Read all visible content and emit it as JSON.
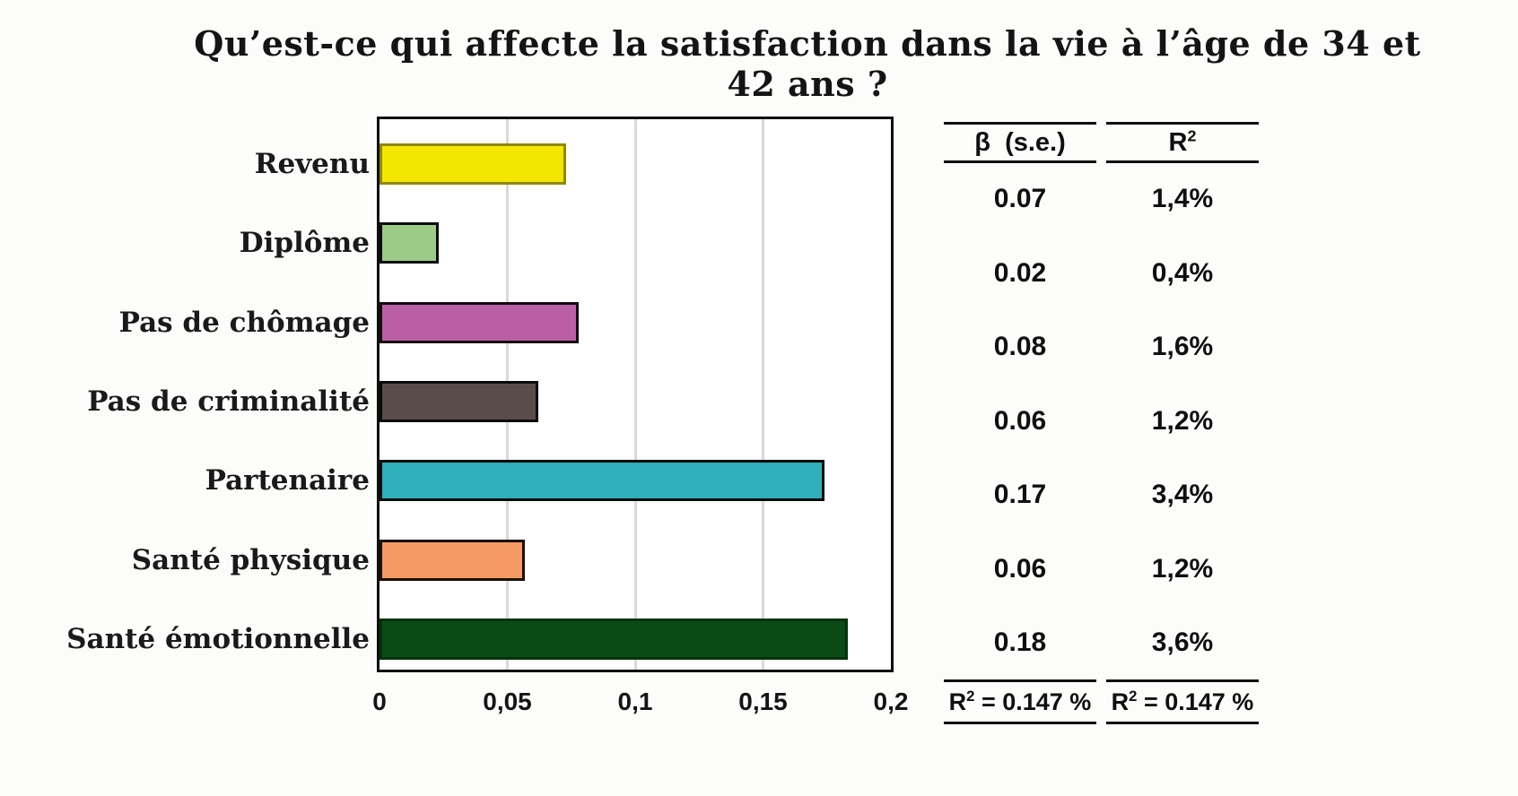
{
  "title": "Qu’est-ce qui affecte la satisfaction dans la vie à l’âge de 34 et 42 ans ?",
  "chart_data": {
    "type": "bar",
    "orientation": "horizontal",
    "title": "Qu’est-ce qui affecte la satisfaction dans la vie à l’âge de 34 et 42 ans ?",
    "categories": [
      "Revenu",
      "Diplôme",
      "Pas de chômage",
      "Pas de criminalité",
      "Partenaire",
      "Santé physique",
      "Santé émotionnelle"
    ],
    "values": [
      0.07,
      0.02,
      0.08,
      0.06,
      0.17,
      0.06,
      0.18
    ],
    "bar_lengths_precise": [
      0.073,
      0.023,
      0.078,
      0.062,
      0.174,
      0.057,
      0.183
    ],
    "bar_colors": [
      "#F3E600",
      "#9CCA87",
      "#BA5FA6",
      "#5A4D49",
      "#2FAFB9",
      "#F49A62",
      "#0A4A14"
    ],
    "bar_border_colors": [
      "#8F8800",
      "#0B0B0B",
      "#140A12",
      "#0B0B0B",
      "#0B0B0B",
      "#1A0F08",
      "#05330C"
    ],
    "x_ticks": [
      "0",
      "0,05",
      "0,1",
      "0,15",
      "0,2"
    ],
    "x_tick_values": [
      0,
      0.05,
      0.1,
      0.15,
      0.2
    ],
    "xlim": [
      0,
      0.2
    ],
    "grid": true,
    "gridline_color": "#D9D9D6",
    "axis_border_color": "#0F0F0F"
  },
  "table": {
    "beta_header": "β  (s.e.)",
    "r2_header_base": "R",
    "r2_header_sup": "2",
    "rows": [
      {
        "beta": "0.07",
        "r2": "1,4%"
      },
      {
        "beta": "0.02",
        "r2": "0,4%"
      },
      {
        "beta": "0.08",
        "r2": "1,6%"
      },
      {
        "beta": "0.06",
        "r2": "1,2%"
      },
      {
        "beta": "0.17",
        "r2": "3,4%"
      },
      {
        "beta": "0.06",
        "r2": "1,2%"
      },
      {
        "beta": "0.18",
        "r2": "3,6%"
      }
    ],
    "footer": {
      "base": "R",
      "sup": "2",
      "rest": " = 0.147 %"
    }
  }
}
